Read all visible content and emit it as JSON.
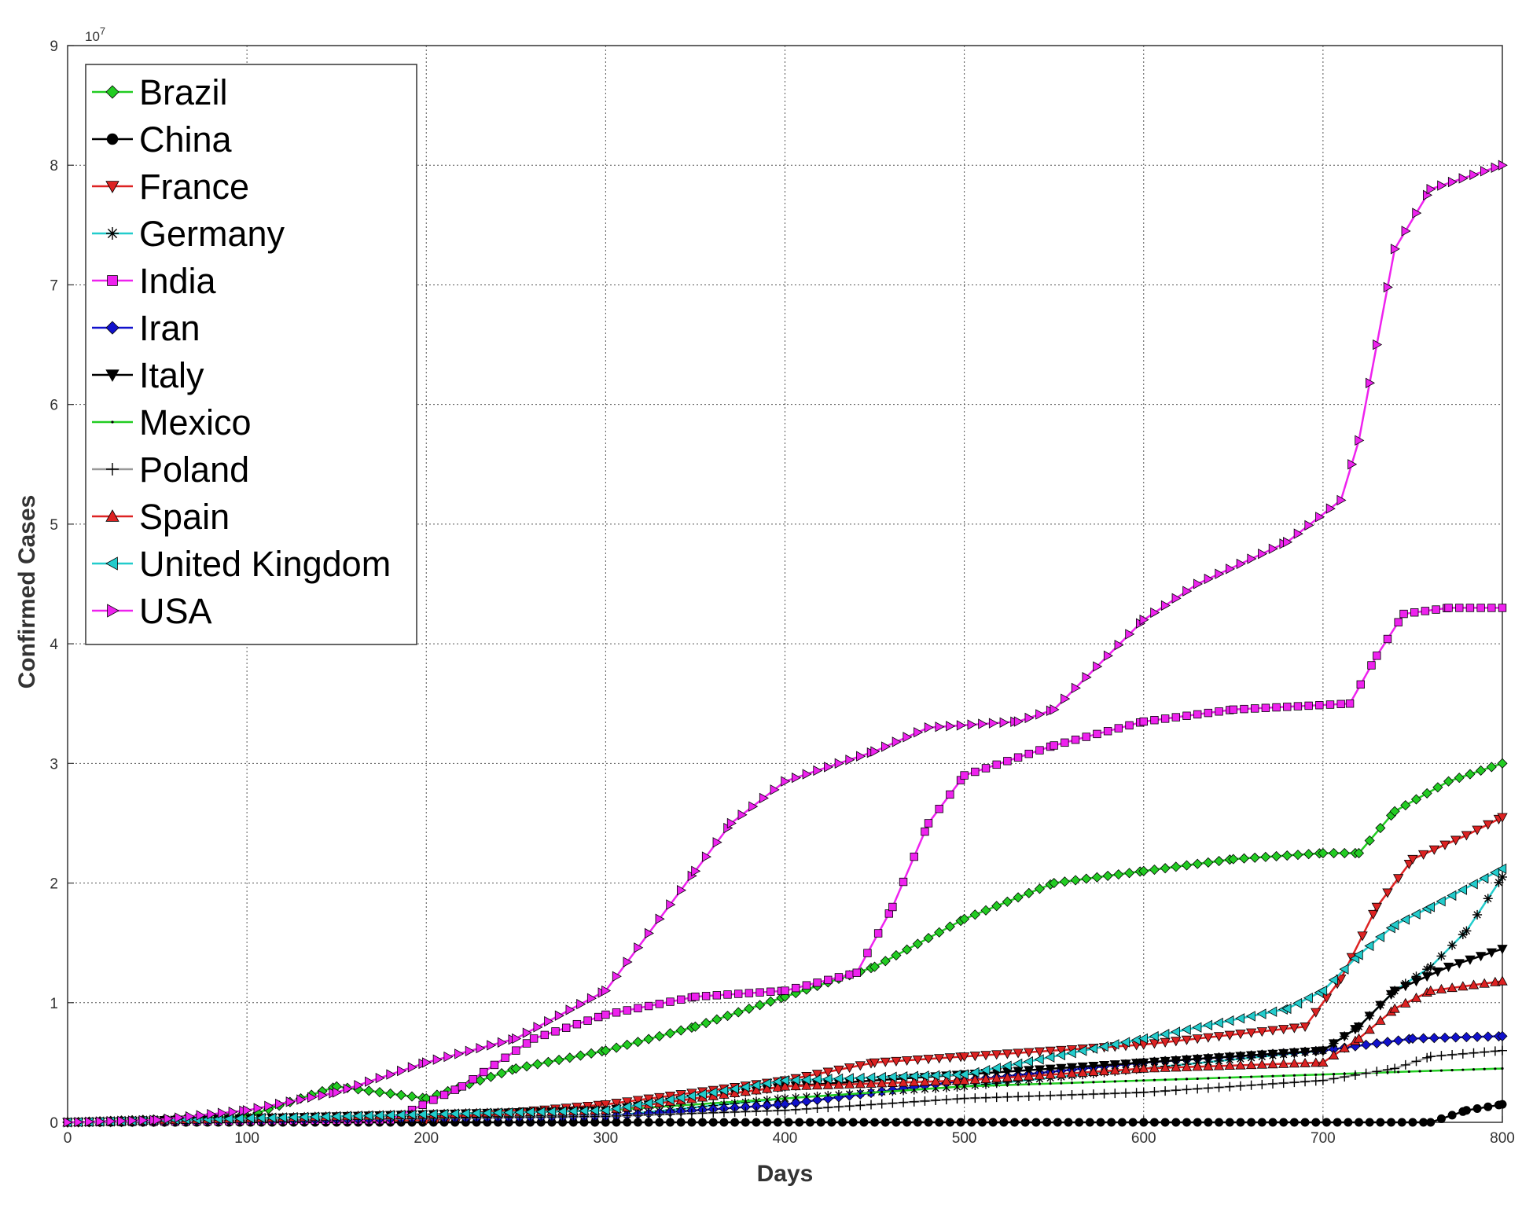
{
  "chart_data": {
    "type": "line",
    "title": "",
    "xlabel": "Days",
    "ylabel": "Confirmed Cases",
    "exponent_label": "10",
    "exponent_power": "7",
    "xlim": [
      0,
      800
    ],
    "ylim": [
      0,
      9
    ],
    "x_ticks": [
      0,
      100,
      200,
      300,
      400,
      500,
      600,
      700,
      800
    ],
    "y_ticks": [
      0,
      1,
      2,
      3,
      4,
      5,
      6,
      7,
      8,
      9
    ],
    "grid": true,
    "legend_position": "top-left",
    "series": [
      {
        "name": "Brazil",
        "color": "#22cc22",
        "marker": "diamond",
        "points": [
          [
            0,
            0
          ],
          [
            100,
            0.05
          ],
          [
            150,
            0.3
          ],
          [
            200,
            0.2
          ],
          [
            250,
            0.45
          ],
          [
            300,
            0.6
          ],
          [
            350,
            0.8
          ],
          [
            400,
            1.05
          ],
          [
            450,
            1.3
          ],
          [
            500,
            1.7
          ],
          [
            550,
            2.0
          ],
          [
            600,
            2.1
          ],
          [
            650,
            2.2
          ],
          [
            700,
            2.25
          ],
          [
            720,
            2.25
          ],
          [
            740,
            2.6
          ],
          [
            770,
            2.85
          ],
          [
            800,
            3.0
          ]
        ]
      },
      {
        "name": "China",
        "color": "#000000",
        "marker": "circle",
        "points": [
          [
            0,
            0
          ],
          [
            760,
            0
          ],
          [
            780,
            0.1
          ],
          [
            800,
            0.15
          ]
        ]
      },
      {
        "name": "France",
        "color": "#dd2222",
        "marker": "triangle-down",
        "points": [
          [
            0,
            0
          ],
          [
            200,
            0.02
          ],
          [
            300,
            0.15
          ],
          [
            400,
            0.35
          ],
          [
            450,
            0.5
          ],
          [
            500,
            0.55
          ],
          [
            600,
            0.65
          ],
          [
            690,
            0.8
          ],
          [
            710,
            1.2
          ],
          [
            730,
            1.8
          ],
          [
            750,
            2.2
          ],
          [
            780,
            2.4
          ],
          [
            800,
            2.55
          ]
        ]
      },
      {
        "name": "Germany",
        "color": "#22cccc",
        "marker": "star",
        "points": [
          [
            0,
            0
          ],
          [
            300,
            0.05
          ],
          [
            400,
            0.2
          ],
          [
            500,
            0.3
          ],
          [
            600,
            0.45
          ],
          [
            700,
            0.6
          ],
          [
            720,
            0.8
          ],
          [
            740,
            1.1
          ],
          [
            760,
            1.3
          ],
          [
            780,
            1.6
          ],
          [
            800,
            2.05
          ]
        ]
      },
      {
        "name": "India",
        "color": "#ee22ee",
        "marker": "square",
        "points": [
          [
            0,
            0
          ],
          [
            180,
            0.02
          ],
          [
            220,
            0.3
          ],
          [
            260,
            0.7
          ],
          [
            300,
            0.9
          ],
          [
            350,
            1.05
          ],
          [
            400,
            1.1
          ],
          [
            440,
            1.25
          ],
          [
            460,
            1.8
          ],
          [
            480,
            2.5
          ],
          [
            500,
            2.9
          ],
          [
            550,
            3.15
          ],
          [
            600,
            3.35
          ],
          [
            650,
            3.45
          ],
          [
            715,
            3.5
          ],
          [
            730,
            3.9
          ],
          [
            745,
            4.25
          ],
          [
            770,
            4.3
          ],
          [
            800,
            4.3
          ]
        ]
      },
      {
        "name": "Iran",
        "color": "#1111cc",
        "marker": "diamond",
        "points": [
          [
            0,
            0
          ],
          [
            300,
            0.05
          ],
          [
            400,
            0.15
          ],
          [
            500,
            0.35
          ],
          [
            600,
            0.5
          ],
          [
            700,
            0.6
          ],
          [
            750,
            0.7
          ],
          [
            800,
            0.72
          ]
        ]
      },
      {
        "name": "Italy",
        "color": "#000000",
        "marker": "triangle-down",
        "points": [
          [
            0,
            0
          ],
          [
            300,
            0.1
          ],
          [
            400,
            0.3
          ],
          [
            500,
            0.4
          ],
          [
            600,
            0.5
          ],
          [
            700,
            0.6
          ],
          [
            720,
            0.8
          ],
          [
            740,
            1.1
          ],
          [
            770,
            1.3
          ],
          [
            800,
            1.45
          ]
        ]
      },
      {
        "name": "Mexico",
        "color": "#22cc22",
        "marker": "dot",
        "points": [
          [
            0,
            0
          ],
          [
            300,
            0.1
          ],
          [
            400,
            0.2
          ],
          [
            500,
            0.3
          ],
          [
            600,
            0.35
          ],
          [
            700,
            0.4
          ],
          [
            800,
            0.45
          ]
        ]
      },
      {
        "name": "Poland",
        "color": "#999999",
        "marker": "plus",
        "points": [
          [
            0,
            0
          ],
          [
            300,
            0.05
          ],
          [
            400,
            0.1
          ],
          [
            500,
            0.2
          ],
          [
            600,
            0.25
          ],
          [
            700,
            0.35
          ],
          [
            740,
            0.45
          ],
          [
            760,
            0.55
          ],
          [
            800,
            0.6
          ]
        ]
      },
      {
        "name": "Spain",
        "color": "#dd2222",
        "marker": "triangle-up",
        "points": [
          [
            0,
            0
          ],
          [
            300,
            0.1
          ],
          [
            400,
            0.3
          ],
          [
            500,
            0.35
          ],
          [
            600,
            0.45
          ],
          [
            700,
            0.5
          ],
          [
            720,
            0.7
          ],
          [
            740,
            0.95
          ],
          [
            760,
            1.1
          ],
          [
            800,
            1.18
          ]
        ]
      },
      {
        "name": "United Kingdom",
        "color": "#22cccc",
        "marker": "triangle-left",
        "points": [
          [
            0,
            0
          ],
          [
            300,
            0.1
          ],
          [
            400,
            0.35
          ],
          [
            500,
            0.4
          ],
          [
            600,
            0.7
          ],
          [
            680,
            0.95
          ],
          [
            700,
            1.1
          ],
          [
            720,
            1.4
          ],
          [
            740,
            1.65
          ],
          [
            760,
            1.8
          ],
          [
            800,
            2.12
          ]
        ]
      },
      {
        "name": "USA",
        "color": "#ee22ee",
        "marker": "triangle-right",
        "points": [
          [
            0,
            0
          ],
          [
            50,
            0.02
          ],
          [
            100,
            0.1
          ],
          [
            150,
            0.25
          ],
          [
            200,
            0.5
          ],
          [
            250,
            0.7
          ],
          [
            300,
            1.1
          ],
          [
            330,
            1.7
          ],
          [
            350,
            2.1
          ],
          [
            370,
            2.5
          ],
          [
            400,
            2.85
          ],
          [
            450,
            3.1
          ],
          [
            480,
            3.3
          ],
          [
            530,
            3.35
          ],
          [
            550,
            3.45
          ],
          [
            600,
            4.2
          ],
          [
            630,
            4.5
          ],
          [
            680,
            4.85
          ],
          [
            710,
            5.2
          ],
          [
            720,
            5.7
          ],
          [
            730,
            6.5
          ],
          [
            740,
            7.3
          ],
          [
            760,
            7.8
          ],
          [
            800,
            8.0
          ]
        ]
      }
    ]
  }
}
